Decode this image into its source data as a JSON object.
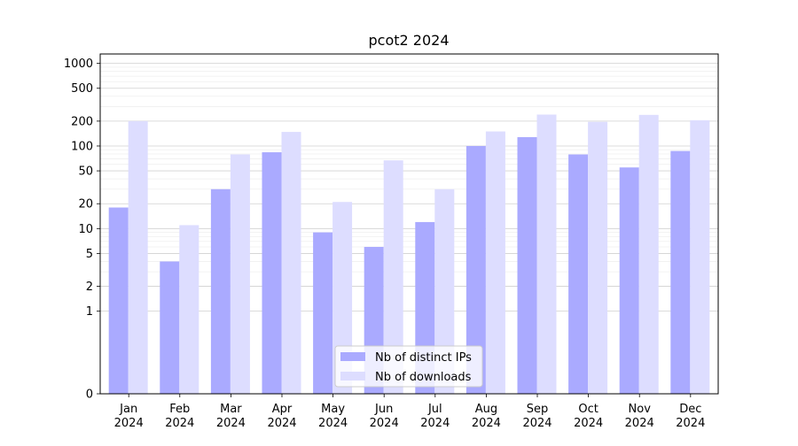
{
  "chart_data": {
    "type": "bar",
    "title": "pcot2 2024",
    "xlabel": "",
    "ylabel": "",
    "categories": [
      [
        "Jan",
        "2024"
      ],
      [
        "Feb",
        "2024"
      ],
      [
        "Mar",
        "2024"
      ],
      [
        "Apr",
        "2024"
      ],
      [
        "May",
        "2024"
      ],
      [
        "Jun",
        "2024"
      ],
      [
        "Jul",
        "2024"
      ],
      [
        "Aug",
        "2024"
      ],
      [
        "Sep",
        "2024"
      ],
      [
        "Oct",
        "2024"
      ],
      [
        "Nov",
        "2024"
      ],
      [
        "Dec",
        "2024"
      ]
    ],
    "series": [
      {
        "name": "Nb of distinct IPs",
        "color": "#aaaaff",
        "values": [
          18,
          4,
          30,
          84,
          9,
          6,
          12,
          100,
          128,
          79,
          55,
          87
        ]
      },
      {
        "name": "Nb of downloads",
        "color": "#ddddff",
        "values": [
          200,
          11,
          79,
          148,
          21,
          67,
          30,
          150,
          240,
          196,
          238,
          205
        ]
      }
    ],
    "yscale": "symlog",
    "ylim": [
      0,
      1300
    ],
    "yticks": [
      0,
      1,
      2,
      5,
      10,
      20,
      50,
      100,
      200,
      500,
      1000
    ],
    "ytick_labels": [
      "0",
      "1",
      "2",
      "5",
      "10",
      "20",
      "50",
      "100",
      "200",
      "500",
      "1000"
    ],
    "grid": true,
    "legend_position": "lower-center"
  }
}
